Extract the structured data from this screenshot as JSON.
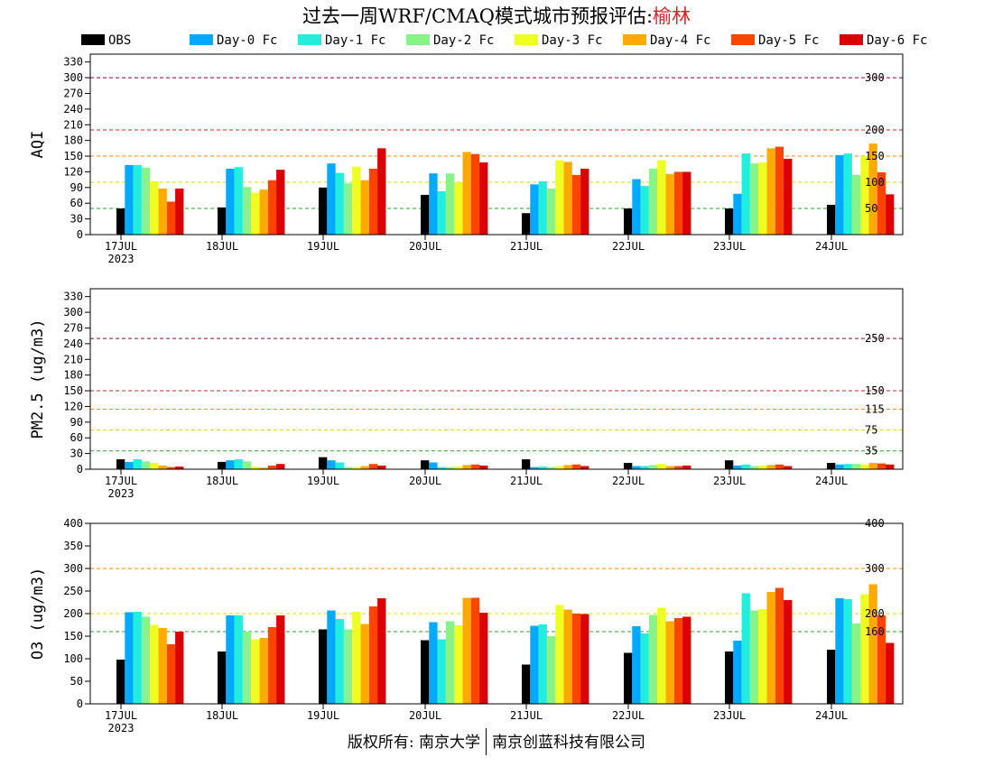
{
  "title": {
    "prefix": "过去一周WRF/CMAQ模式城市预报评估:",
    "city": "榆林"
  },
  "footer": {
    "left": "版权所有: 南京大学",
    "right": "南京创蓝科技有限公司"
  },
  "legend": [
    {
      "label": "OBS",
      "color": "#000000"
    },
    {
      "label": "Day-0 Fc",
      "color": "#00aaff"
    },
    {
      "label": "Day-1 Fc",
      "color": "#22eedd"
    },
    {
      "label": "Day-2 Fc",
      "color": "#88f488"
    },
    {
      "label": "Day-3 Fc",
      "color": "#eeff22"
    },
    {
      "label": "Day-4 Fc",
      "color": "#ffaa00"
    },
    {
      "label": "Day-5 Fc",
      "color": "#ff4400"
    },
    {
      "label": "Day-6 Fc",
      "color": "#dd0000"
    }
  ],
  "chart_data": [
    {
      "type": "bar",
      "ylabel": "AQI",
      "ylim": [
        0,
        345
      ],
      "yticks": [
        0,
        30,
        60,
        90,
        120,
        150,
        180,
        210,
        240,
        270,
        300,
        330
      ],
      "categories": [
        "17JUL",
        "18JUL",
        "19JUL",
        "20JUL",
        "21JUL",
        "22JUL",
        "23JUL",
        "24JUL"
      ],
      "year_label": "2023",
      "thresholds": [
        {
          "value": 50,
          "label": "50",
          "color": "#22aa22"
        },
        {
          "value": 100,
          "label": "100",
          "color": "#dddd00"
        },
        {
          "value": 150,
          "label": "150",
          "color": "#ff8800"
        },
        {
          "value": 200,
          "label": "200",
          "color": "#dd2222"
        },
        {
          "value": 300,
          "label": "300",
          "color": "#990033"
        }
      ],
      "series": [
        {
          "name": "OBS",
          "values": [
            50,
            52,
            90,
            76,
            41,
            50,
            50,
            57
          ]
        },
        {
          "name": "Day-0 Fc",
          "values": [
            133,
            126,
            136,
            117,
            96,
            106,
            78,
            152
          ]
        },
        {
          "name": "Day-1 Fc",
          "values": [
            133,
            129,
            118,
            83,
            102,
            93,
            155,
            155
          ]
        },
        {
          "name": "Day-2 Fc",
          "values": [
            128,
            91,
            98,
            117,
            88,
            126,
            136,
            114
          ]
        },
        {
          "name": "Day-3 Fc",
          "values": [
            102,
            80,
            130,
            100,
            142,
            142,
            138,
            150
          ]
        },
        {
          "name": "Day-4 Fc",
          "values": [
            88,
            86,
            104,
            158,
            139,
            116,
            165,
            174
          ]
        },
        {
          "name": "Day-5 Fc",
          "values": [
            63,
            104,
            126,
            154,
            114,
            120,
            168,
            119
          ]
        },
        {
          "name": "Day-6 Fc",
          "values": [
            88,
            124,
            165,
            138,
            126,
            120,
            145,
            77
          ]
        }
      ]
    },
    {
      "type": "bar",
      "ylabel": "PM2.5 (ug/m3)",
      "ylim": [
        0,
        345
      ],
      "yticks": [
        0,
        30,
        60,
        90,
        120,
        150,
        180,
        210,
        240,
        270,
        300,
        330
      ],
      "categories": [
        "17JUL",
        "18JUL",
        "19JUL",
        "20JUL",
        "21JUL",
        "22JUL",
        "23JUL",
        "24JUL"
      ],
      "year_label": "2023",
      "thresholds": [
        {
          "value": 35,
          "label": "35",
          "color": "#22aa22"
        },
        {
          "value": 75,
          "label": "75",
          "color": "#dddd00"
        },
        {
          "value": 115,
          "label": "115",
          "color": "#ff8800"
        },
        {
          "value": 150,
          "label": "150",
          "color": "#dd2222"
        },
        {
          "value": 250,
          "label": "250",
          "color": "#990033"
        }
      ],
      "series": [
        {
          "name": "OBS",
          "values": [
            19,
            14,
            23,
            17,
            19,
            12,
            17,
            12
          ]
        },
        {
          "name": "Day-0 Fc",
          "values": [
            14,
            17,
            17,
            13,
            4,
            6,
            7,
            9
          ]
        },
        {
          "name": "Day-1 Fc",
          "values": [
            19,
            19,
            13,
            4,
            5,
            6,
            9,
            10
          ]
        },
        {
          "name": "Day-2 Fc",
          "values": [
            15,
            15,
            4,
            4,
            4,
            8,
            6,
            10
          ]
        },
        {
          "name": "Day-3 Fc",
          "values": [
            12,
            5,
            4,
            5,
            6,
            10,
            7,
            9
          ]
        },
        {
          "name": "Day-4 Fc",
          "values": [
            7,
            3,
            6,
            8,
            8,
            6,
            8,
            12
          ]
        },
        {
          "name": "Day-5 Fc",
          "values": [
            4,
            7,
            10,
            9,
            9,
            6,
            9,
            11
          ]
        },
        {
          "name": "Day-6 Fc",
          "values": [
            5,
            10,
            7,
            7,
            6,
            7,
            6,
            9
          ]
        }
      ]
    },
    {
      "type": "bar",
      "ylabel": "O3 (ug/m3)",
      "ylim": [
        0,
        400
      ],
      "yticks": [
        0,
        50,
        100,
        150,
        200,
        250,
        300,
        350,
        400
      ],
      "categories": [
        "17JUL",
        "18JUL",
        "19JUL",
        "20JUL",
        "21JUL",
        "22JUL",
        "23JUL",
        "24JUL"
      ],
      "year_label": "2023",
      "thresholds": [
        {
          "value": 160,
          "label": "160",
          "color": "#22aa22"
        },
        {
          "value": 200,
          "label": "200",
          "color": "#dddd00"
        },
        {
          "value": 300,
          "label": "300",
          "color": "#ff8800"
        },
        {
          "value": 400,
          "label": "400",
          "color": "#dd2222"
        }
      ],
      "series": [
        {
          "name": "OBS",
          "values": [
            98,
            116,
            165,
            141,
            87,
            113,
            116,
            120
          ]
        },
        {
          "name": "Day-0 Fc",
          "values": [
            203,
            196,
            207,
            181,
            173,
            172,
            140,
            234
          ]
        },
        {
          "name": "Day-1 Fc",
          "values": [
            204,
            196,
            188,
            143,
            176,
            156,
            245,
            232
          ]
        },
        {
          "name": "Day-2 Fc",
          "values": [
            193,
            160,
            165,
            183,
            150,
            197,
            207,
            178
          ]
        },
        {
          "name": "Day-3 Fc",
          "values": [
            175,
            143,
            204,
            174,
            219,
            213,
            210,
            243
          ]
        },
        {
          "name": "Day-4 Fc",
          "values": [
            168,
            146,
            177,
            235,
            209,
            183,
            248,
            265
          ]
        },
        {
          "name": "Day-5 Fc",
          "values": [
            132,
            170,
            216,
            235,
            200,
            190,
            257,
            196
          ]
        },
        {
          "name": "Day-6 Fc",
          "values": [
            160,
            196,
            234,
            202,
            199,
            193,
            230,
            135
          ]
        }
      ]
    }
  ]
}
